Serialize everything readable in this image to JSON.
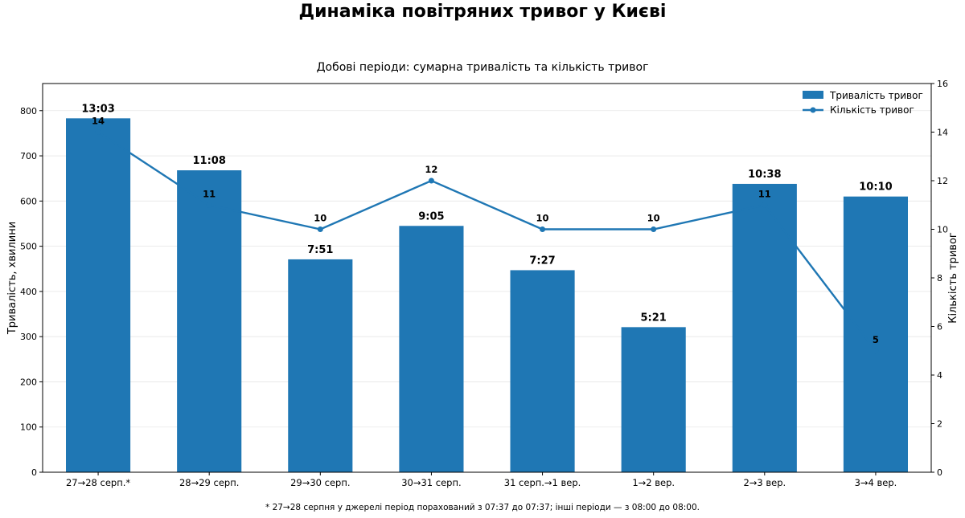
{
  "title": "Динаміка повітряних тривог у Києві",
  "subtitle": "Добові періоди: сумарна тривалість та кількість тривог",
  "footnote": "* 27→28 серпня у джерелі період порахований з 07:37 до 07:37; інші періоди — з 08:00 до 08:00.",
  "colors": {
    "bar": "#1f77b4",
    "line": "#1f77b4"
  },
  "chart_data": {
    "type": "bar",
    "categories": [
      "27→28 серп.*",
      "28→29 серп.",
      "29→30 серп.",
      "30→31 серп.",
      "31 серп.→1 вер.",
      "1→2 вер.",
      "2→3 вер.",
      "3→4 вер."
    ],
    "series": [
      {
        "name": "Тривалість тривог",
        "type": "bar",
        "axis": "left",
        "values": [
          783,
          668,
          471,
          545,
          447,
          321,
          638,
          610
        ],
        "labels": [
          "13:03",
          "11:08",
          "7:51",
          "9:05",
          "7:27",
          "5:21",
          "10:38",
          "10:10"
        ]
      },
      {
        "name": "Кількість тривог",
        "type": "line",
        "axis": "right",
        "values": [
          14,
          11,
          10,
          12,
          10,
          10,
          11,
          5
        ],
        "labels": [
          "14",
          "11",
          "10",
          "12",
          "10",
          "10",
          "11",
          "5"
        ]
      }
    ],
    "ylabel": "Тривалість, хвилини",
    "y2label": "Кількість тривог",
    "ylim": [
      0,
      860
    ],
    "y2lim": [
      0,
      16
    ],
    "yticks": [
      "0",
      "100",
      "200",
      "300",
      "400",
      "500",
      "600",
      "700",
      "800"
    ],
    "y2ticks": [
      "0",
      "2",
      "4",
      "6",
      "8",
      "10",
      "12",
      "14",
      "16"
    ],
    "grid": true,
    "legend": "top-right"
  }
}
